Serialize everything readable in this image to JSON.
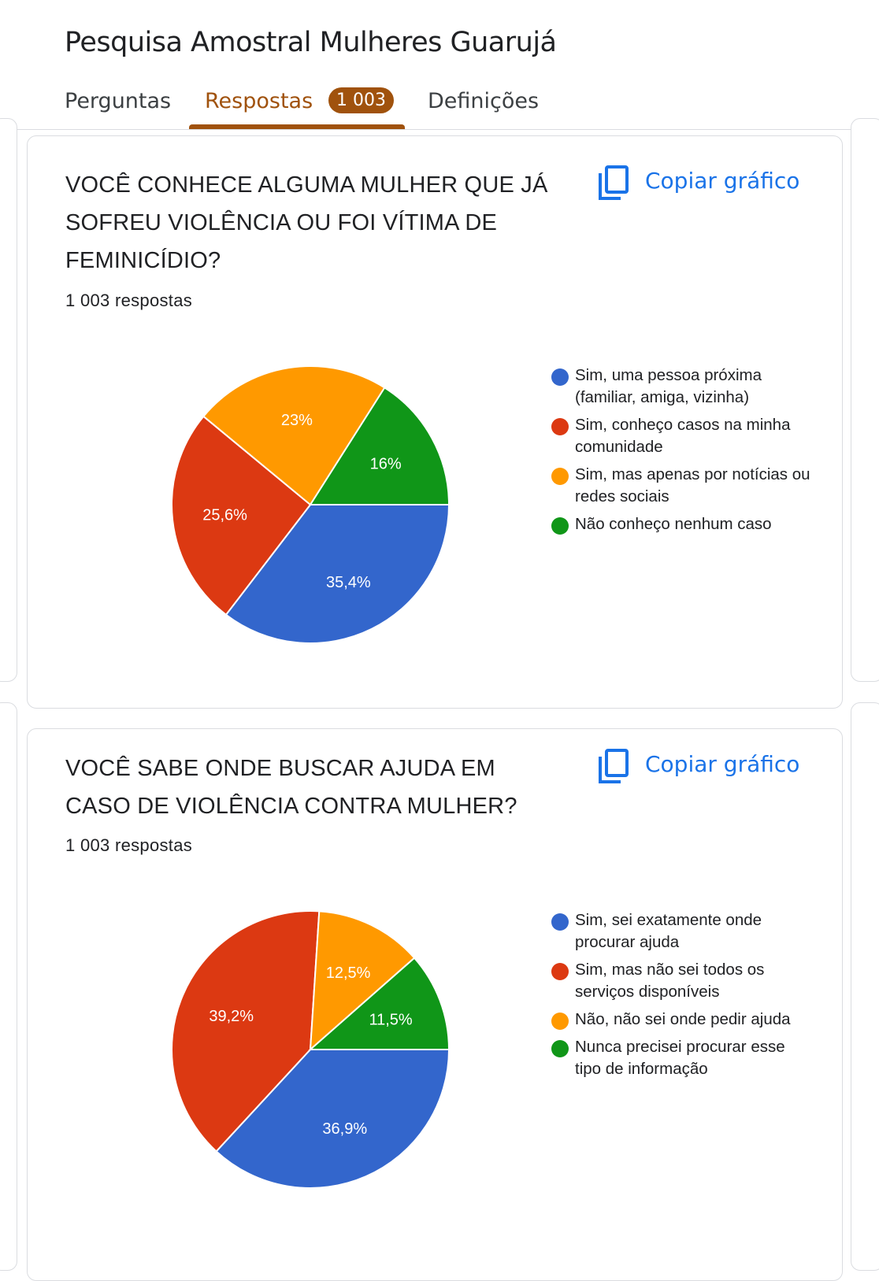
{
  "form": {
    "title": "Pesquisa Amostral Mulheres Guarujá"
  },
  "tabs": {
    "perguntas": "Perguntas",
    "respostas": "Respostas",
    "respostas_count": "1 003",
    "definicoes": "Definições"
  },
  "colors": {
    "accent": "#a0520d",
    "link": "#1a73e8"
  },
  "icons": {
    "copy": "copy-icon"
  },
  "questions": [
    {
      "title": "VOCÊ CONHECE ALGUMA MULHER QUE JÁ SOFREU VIOLÊNCIA OU FOI VÍTIMA DE FEMINICÍDIO?",
      "responses": "1 003 respostas",
      "copy_label": "Copiar gráfico",
      "legend": [
        "Sim, uma pessoa próxima (familiar, amiga, vizinha)",
        "Sim, conheço casos na minha comunidade",
        "Sim, mas apenas por notícias ou redes sociais",
        "Não conheço nenhum caso"
      ]
    },
    {
      "title": "VOCÊ SABE ONDE BUSCAR AJUDA EM CASO DE VIOLÊNCIA CONTRA MULHER?",
      "responses": "1 003 respostas",
      "copy_label": "Copiar gráfico",
      "legend": [
        "Sim, sei exatamente onde procurar ajuda",
        "Sim, mas não sei todos os serviços disponíveis",
        "Não, não sei onde pedir ajuda",
        "Nunca precisei procurar esse tipo de informação"
      ]
    }
  ],
  "chart_data": [
    {
      "type": "pie",
      "categories": [
        "Sim, uma pessoa próxima (familiar, amiga, vizinha)",
        "Sim, conheço casos na minha comunidade",
        "Sim, mas apenas por notícias ou redes sociais",
        "Não conheço nenhum caso"
      ],
      "values": [
        35.4,
        25.6,
        23,
        16
      ],
      "labels": [
        "35,4%",
        "25,6%",
        "23%",
        "16%"
      ],
      "colors": [
        "#3366cc",
        "#dc3912",
        "#ff9900",
        "#109618"
      ],
      "legend": "right"
    },
    {
      "type": "pie",
      "categories": [
        "Sim, sei exatamente onde procurar ajuda",
        "Sim, mas não sei todos os serviços disponíveis",
        "Não, não sei onde pedir ajuda",
        "Nunca precisei procurar esse tipo de informação"
      ],
      "values": [
        36.9,
        39.2,
        12.5,
        11.5
      ],
      "labels": [
        "36,9%",
        "39,2%",
        "12,5%",
        "11,5%"
      ],
      "colors": [
        "#3366cc",
        "#dc3912",
        "#ff9900",
        "#109618"
      ],
      "legend": "right"
    }
  ]
}
